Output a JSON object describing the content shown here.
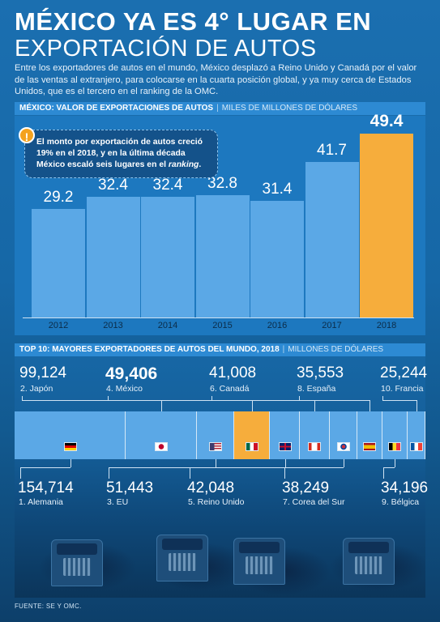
{
  "header": {
    "title_line1": "MÉXICO YA ES 4° LUGAR EN",
    "title_line2": "EXPORTACIÓN DE AUTOS",
    "lead": "Entre los exportadores de autos en el mundo, México desplazó a Reino Unido y Canadá por el valor de las ventas al extranjero, para colocarse en la cuarta posición global, y ya muy cerca de Estados Unidos, que es el tercero en el ranking de la OMC."
  },
  "section1": {
    "title": "MÉXICO: VALOR DE EXPORTACIONES DE AUTOS",
    "separator": "|",
    "unit": "MILES DE MILLONES DE DÓLARES"
  },
  "note": {
    "icon": "!",
    "text_part1": "El monto por exportación de autos creció 19% en el  2018, y en la última década México escaló seis lugares en el ",
    "text_italic": "ranking",
    "text_end": "."
  },
  "chart_data": [
    {
      "type": "bar",
      "title": "MÉXICO: VALOR DE EXPORTACIONES DE AUTOS",
      "unit": "MILES DE MILLONES DE DÓLARES",
      "categories": [
        "2012",
        "2013",
        "2014",
        "2015",
        "2016",
        "2017",
        "2018"
      ],
      "values": [
        29.2,
        32.4,
        32.4,
        32.8,
        31.4,
        41.7,
        49.4
      ],
      "value_labels": [
        "29.2",
        "32.4",
        "32.4",
        "32.8",
        "31.4",
        "41.7",
        "49.4"
      ],
      "highlight_category": "2018",
      "colors": {
        "bar": "#5ba8e6",
        "highlight": "#f6ad3c"
      }
    },
    {
      "type": "bar",
      "title": "TOP 10: MAYORES EXPORTADORES DE AUTOS DEL MUNDO, 2018",
      "unit": "MILLONES DE DÓLARES",
      "series": [
        {
          "rank": "1.",
          "country": "Alemania",
          "value": 154714,
          "label": "154,714",
          "flag": "germany-flag-icon"
        },
        {
          "rank": "2.",
          "country": "Japón",
          "value": 99124,
          "label": "99,124",
          "flag": "japan-flag-icon"
        },
        {
          "rank": "3.",
          "country": "EU",
          "value": 51443,
          "label": "51,443",
          "flag": "usa-flag-icon"
        },
        {
          "rank": "4.",
          "country": "México",
          "value": 49406,
          "label": "49,406",
          "flag": "mexico-flag-icon"
        },
        {
          "rank": "5.",
          "country": "Reino Unido",
          "value": 42048,
          "label": "42,048",
          "flag": "uk-flag-icon"
        },
        {
          "rank": "6.",
          "country": "Canadá",
          "value": 41008,
          "label": "41,008",
          "flag": "canada-flag-icon"
        },
        {
          "rank": "7.",
          "country": "Corea del Sur",
          "value": 38249,
          "label": "38,249",
          "flag": "south-korea-flag-icon"
        },
        {
          "rank": "8.",
          "country": "España",
          "value": 35553,
          "label": "35,553",
          "flag": "spain-flag-icon"
        },
        {
          "rank": "9.",
          "country": "Bélgica",
          "value": 34196,
          "label": "34,196",
          "flag": "belgium-flag-icon"
        },
        {
          "rank": "10.",
          "country": "Francia",
          "value": 25244,
          "label": "25,244",
          "flag": "france-flag-icon"
        }
      ],
      "highlight_country": "México"
    }
  ],
  "section2": {
    "title": "TOP 10: MAYORES EXPORTADORES DE AUTOS DEL MUNDO, 2018",
    "separator": "|",
    "unit": "MILLONES DE DÓLARES"
  },
  "footer": {
    "source": "FUENTE: SE Y OMC."
  }
}
